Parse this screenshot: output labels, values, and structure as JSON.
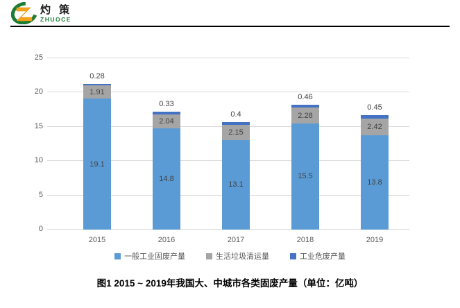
{
  "logo": {
    "cn": "灼 策",
    "en": "ZHUOCE"
  },
  "colors": {
    "series_general": "#5B9BD5",
    "series_household": "#A5A5A5",
    "series_hazardous": "#4472C4",
    "gridline": "#D9D9D9",
    "axis_text": "#595959",
    "data_label": "#404040",
    "logo_green": "#1C7C33",
    "logo_orange": "#F5A21B"
  },
  "chart_data": {
    "type": "bar",
    "stacked": true,
    "categories": [
      "2015",
      "2016",
      "2017",
      "2018",
      "2019"
    ],
    "series": [
      {
        "name": "一般工业固废产量",
        "color": "#5B9BD5",
        "values": [
          19.1,
          14.8,
          13.1,
          15.5,
          13.8
        ],
        "labels": [
          "19.1",
          "14.8",
          "13.1",
          "15.5",
          "13.8"
        ],
        "label_position": "inside"
      },
      {
        "name": "生活垃圾清运量",
        "color": "#A5A5A5",
        "values": [
          1.91,
          2.04,
          2.15,
          2.28,
          2.42
        ],
        "labels": [
          "1.91",
          "2.04",
          "2.15",
          "2.28",
          "2.42"
        ],
        "label_position": "inside"
      },
      {
        "name": "工业危废产量",
        "color": "#4472C4",
        "values": [
          0.28,
          0.33,
          0.4,
          0.46,
          0.45
        ],
        "labels": [
          "0.28",
          "0.33",
          "0.4",
          "0.46",
          "0.45"
        ],
        "label_position": "above"
      }
    ],
    "ylim": [
      0,
      25
    ],
    "yticks": [
      0,
      5,
      10,
      15,
      20,
      25
    ],
    "grid": true,
    "legend_position": "bottom",
    "xlabel": "",
    "ylabel": ""
  },
  "caption": "图1   2015 ~ 2019年我国大、中城市各类固废产量（单位：亿吨）"
}
